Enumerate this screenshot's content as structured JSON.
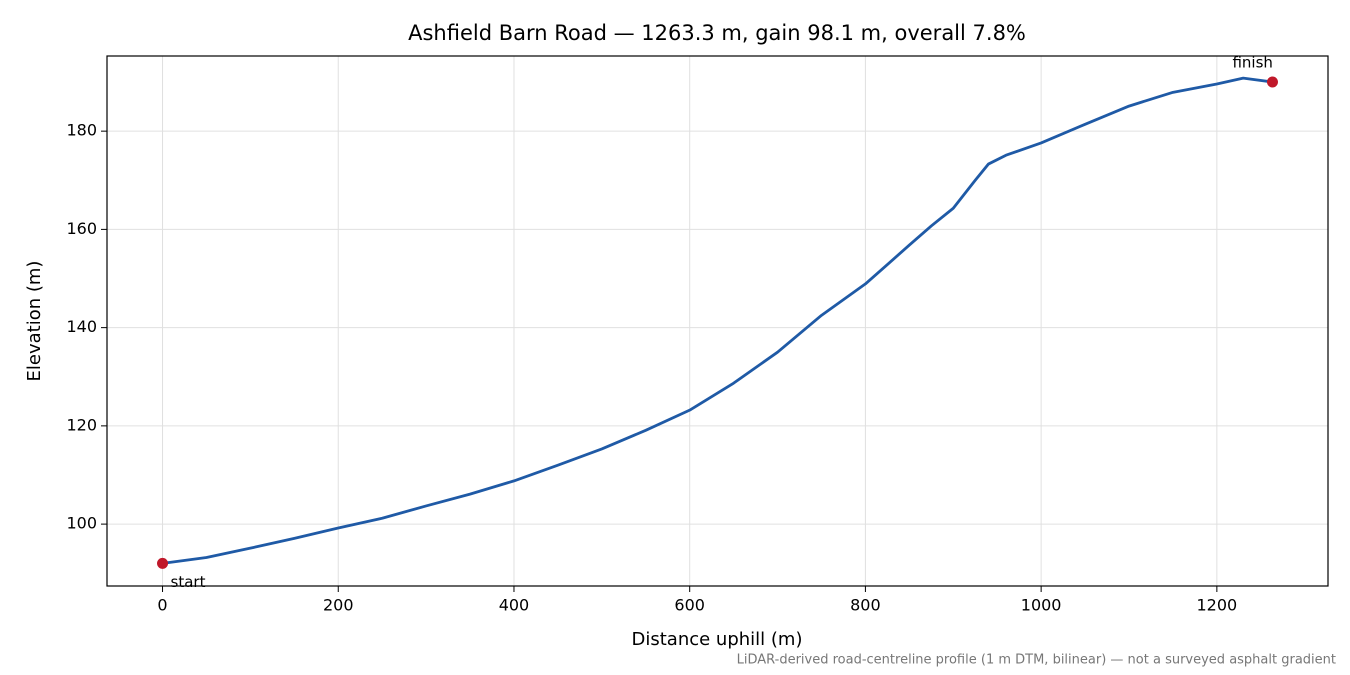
{
  "chart_data": {
    "type": "line",
    "title": "Ashfield Barn Road — 1263.3 m, gain 98.1 m, overall 7.8%",
    "xlabel": "Distance uphill (m)",
    "ylabel": "Elevation (m)",
    "note": "LiDAR-derived road-centreline profile (1 m DTM, bilinear) — not a surveyed asphalt gradient",
    "x": [
      0,
      50,
      100,
      150,
      200,
      250,
      300,
      350,
      400,
      450,
      500,
      550,
      600,
      650,
      700,
      750,
      800,
      850,
      875,
      900,
      925,
      940,
      960,
      1000,
      1050,
      1100,
      1150,
      1200,
      1230,
      1263.3
    ],
    "series": [
      {
        "color": "#1f5aa6",
        "values": [
          92.0,
          93.2,
          95.1,
          97.1,
          99.2,
          101.2,
          103.7,
          106.1,
          108.8,
          112.0,
          115.3,
          119.1,
          123.2,
          128.7,
          135.0,
          142.5,
          148.9,
          156.8,
          160.7,
          164.3,
          170.0,
          173.3,
          175.1,
          177.6,
          181.4,
          185.1,
          187.9,
          189.6,
          190.8,
          190.0
        ]
      }
    ],
    "annotations": [
      {
        "text": "start",
        "x": 0,
        "y": 92.0,
        "color": "#c0182a"
      },
      {
        "text": "finish",
        "x": 1263.3,
        "y": 190.0,
        "color": "#c0182a"
      }
    ],
    "xlim": [
      -63.2,
      1326.5
    ],
    "ylim": [
      87.4,
      195.3
    ],
    "xticks": [
      0,
      200,
      400,
      600,
      800,
      1000,
      1200
    ],
    "yticks": [
      100,
      120,
      140,
      160,
      180
    ],
    "grid": true
  }
}
